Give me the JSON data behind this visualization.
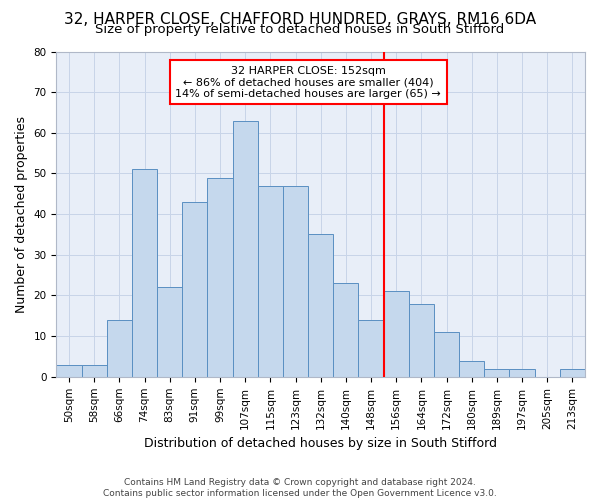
{
  "title": "32, HARPER CLOSE, CHAFFORD HUNDRED, GRAYS, RM16 6DA",
  "subtitle": "Size of property relative to detached houses in South Stifford",
  "xlabel": "Distribution of detached houses by size in South Stifford",
  "ylabel": "Number of detached properties",
  "footnote1": "Contains HM Land Registry data © Crown copyright and database right 2024.",
  "footnote2": "Contains public sector information licensed under the Open Government Licence v3.0.",
  "categories": [
    "50sqm",
    "58sqm",
    "66sqm",
    "74sqm",
    "83sqm",
    "91sqm",
    "99sqm",
    "107sqm",
    "115sqm",
    "123sqm",
    "132sqm",
    "140sqm",
    "148sqm",
    "156sqm",
    "164sqm",
    "172sqm",
    "180sqm",
    "189sqm",
    "197sqm",
    "205sqm",
    "213sqm"
  ],
  "values": [
    3,
    3,
    14,
    51,
    22,
    43,
    49,
    63,
    47,
    47,
    35,
    23,
    14,
    21,
    18,
    11,
    4,
    2,
    2,
    0,
    2
  ],
  "bar_color": "#c5d8ed",
  "bar_edge_color": "#5a8fc2",
  "grid_color": "#c8d4e8",
  "background_color": "#e8eef8",
  "vline_color": "red",
  "vline_x": 12.5,
  "annotation_text_line1": "32 HARPER CLOSE: 152sqm",
  "annotation_text_line2": "← 86% of detached houses are smaller (404)",
  "annotation_text_line3": "14% of semi-detached houses are larger (65) →",
  "ylim": [
    0,
    80
  ],
  "yticks": [
    0,
    10,
    20,
    30,
    40,
    50,
    60,
    70,
    80
  ],
  "title_fontsize": 11,
  "subtitle_fontsize": 9.5,
  "ylabel_fontsize": 9,
  "xlabel_fontsize": 9,
  "tick_fontsize": 7.5,
  "annotation_fontsize": 8,
  "footnote_fontsize": 6.5
}
